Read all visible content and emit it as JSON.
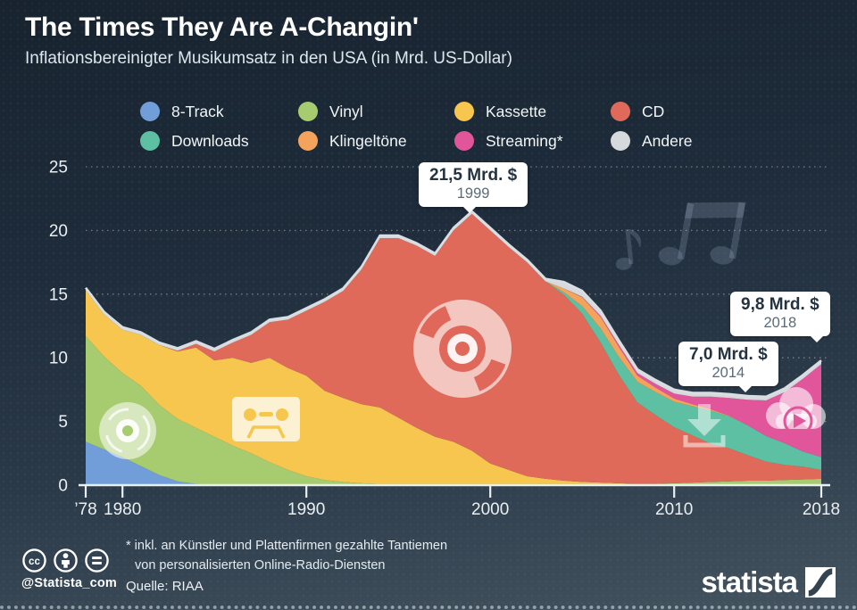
{
  "header": {
    "title": "The Times They Are A-Changin'",
    "subtitle": "Inflationsbereinigter Musikumsatz in den USA (in Mrd. US-Dollar)"
  },
  "legend": {
    "items": [
      {
        "label": "8-Track",
        "color": "#719ed9"
      },
      {
        "label": "Vinyl",
        "color": "#a7cb6f"
      },
      {
        "label": "Kassette",
        "color": "#f6c64f"
      },
      {
        "label": "CD",
        "color": "#e06a5a"
      },
      {
        "label": "Downloads",
        "color": "#5ec0a2"
      },
      {
        "label": "Klingeltöne",
        "color": "#f4a35c"
      },
      {
        "label": "Streaming*",
        "color": "#e1569b"
      },
      {
        "label": "Andere",
        "color": "#d7dadc"
      }
    ]
  },
  "callouts": [
    {
      "value": "21,5 Mrd. $",
      "year": "1999"
    },
    {
      "value": "7,0 Mrd. $",
      "year": "2014"
    },
    {
      "value": "9,8 Mrd. $",
      "year": "2018"
    }
  ],
  "chart_data": {
    "type": "area",
    "stacked": true,
    "title": "Inflationsbereinigter Musikumsatz in den USA (in Mrd. US-Dollar)",
    "xlabel": "",
    "ylabel": "",
    "x_start": 1978,
    "x_end": 2018,
    "ylim": [
      0,
      25
    ],
    "grid": "dotted-horizontal",
    "legend_position": "top-center",
    "yticks": [
      0,
      5,
      10,
      15,
      20,
      25
    ],
    "xticks": [
      {
        "label": "’78",
        "year": 1978
      },
      {
        "label": "1980",
        "year": 1980
      },
      {
        "label": "1990",
        "year": 1990
      },
      {
        "label": "2000",
        "year": 2000
      },
      {
        "label": "2010",
        "year": 2010
      },
      {
        "label": "2018",
        "year": 2018
      }
    ],
    "years": [
      1978,
      1979,
      1980,
      1981,
      1982,
      1983,
      1984,
      1985,
      1986,
      1987,
      1988,
      1989,
      1990,
      1991,
      1992,
      1993,
      1994,
      1995,
      1996,
      1997,
      1998,
      1999,
      2000,
      2001,
      2002,
      2003,
      2004,
      2005,
      2006,
      2007,
      2008,
      2009,
      2010,
      2011,
      2012,
      2013,
      2014,
      2015,
      2016,
      2017,
      2018
    ],
    "series": [
      {
        "name": "8-Track",
        "color": "#719ed9",
        "values": [
          3.4,
          2.8,
          2.2,
          1.5,
          0.8,
          0.3,
          0.1,
          0,
          0,
          0,
          0,
          0,
          0,
          0,
          0,
          0,
          0,
          0,
          0,
          0,
          0,
          0,
          0,
          0,
          0,
          0,
          0,
          0,
          0,
          0,
          0,
          0,
          0,
          0,
          0,
          0,
          0,
          0,
          0,
          0,
          0
        ]
      },
      {
        "name": "Vinyl",
        "color": "#a7cb6f",
        "values": [
          8.3,
          7.3,
          6.6,
          6.3,
          5.5,
          4.9,
          4.4,
          3.8,
          3.1,
          2.5,
          1.8,
          1.2,
          0.7,
          0.4,
          0.25,
          0.15,
          0.1,
          0.1,
          0.1,
          0.1,
          0.1,
          0.1,
          0.1,
          0.1,
          0.1,
          0.1,
          0.1,
          0.1,
          0.1,
          0.1,
          0.1,
          0.1,
          0.15,
          0.2,
          0.25,
          0.3,
          0.35,
          0.35,
          0.4,
          0.45,
          0.5
        ]
      },
      {
        "name": "Kassette",
        "color": "#f6c64f",
        "values": [
          3.6,
          3.3,
          3.4,
          4.0,
          4.7,
          5.3,
          6.3,
          6.0,
          6.9,
          7.1,
          8.2,
          8.0,
          7.9,
          7.0,
          6.6,
          6.2,
          6.0,
          5.2,
          4.4,
          3.7,
          3.3,
          2.6,
          1.6,
          1.1,
          0.6,
          0.4,
          0.25,
          0.15,
          0.1,
          0.05,
          0,
          0,
          0,
          0,
          0,
          0,
          0,
          0,
          0,
          0,
          0
        ]
      },
      {
        "name": "CD",
        "color": "#e06a5a",
        "values": [
          0,
          0,
          0,
          0,
          0,
          0.05,
          0.3,
          0.7,
          1.2,
          2.2,
          2.8,
          3.8,
          5.1,
          7.0,
          8.4,
          10.6,
          13.3,
          14.1,
          14.3,
          14.2,
          16.6,
          18.6,
          18.3,
          17.5,
          16.8,
          15.5,
          14.6,
          13.2,
          11.0,
          8.5,
          6.4,
          5.4,
          4.4,
          3.7,
          3.0,
          2.6,
          2.0,
          1.5,
          1.2,
          1.0,
          0.7
        ]
      },
      {
        "name": "Downloads",
        "color": "#5ec0a2",
        "values": [
          0,
          0,
          0,
          0,
          0,
          0,
          0,
          0,
          0,
          0,
          0,
          0,
          0,
          0,
          0,
          0,
          0,
          0,
          0,
          0,
          0,
          0,
          0,
          0,
          0,
          0,
          0.2,
          0.6,
          1.1,
          1.4,
          1.6,
          1.8,
          2.0,
          2.3,
          2.6,
          2.5,
          2.35,
          2.0,
          1.7,
          1.2,
          1.0
        ]
      },
      {
        "name": "Klingeltöne",
        "color": "#f4a35c",
        "values": [
          0,
          0,
          0,
          0,
          0,
          0,
          0,
          0,
          0,
          0,
          0,
          0,
          0,
          0,
          0,
          0,
          0,
          0,
          0,
          0,
          0,
          0,
          0,
          0,
          0,
          0,
          0.3,
          0.7,
          0.9,
          0.8,
          0.5,
          0.35,
          0.25,
          0.15,
          0.1,
          0.05,
          0,
          0,
          0,
          0,
          0
        ]
      },
      {
        "name": "Streaming",
        "color": "#e1569b",
        "values": [
          0,
          0,
          0,
          0,
          0,
          0,
          0,
          0,
          0,
          0,
          0,
          0,
          0,
          0,
          0,
          0,
          0,
          0,
          0,
          0,
          0,
          0,
          0,
          0,
          0,
          0,
          0,
          0.05,
          0.1,
          0.15,
          0.2,
          0.3,
          0.4,
          0.6,
          1.0,
          1.4,
          2.0,
          2.8,
          4.0,
          5.7,
          7.3
        ]
      },
      {
        "name": "Andere",
        "color": "#d7dadc",
        "values": [
          0.2,
          0.2,
          0.2,
          0.2,
          0.2,
          0.2,
          0.2,
          0.2,
          0.2,
          0.2,
          0.2,
          0.2,
          0.2,
          0.2,
          0.2,
          0.2,
          0.2,
          0.2,
          0.2,
          0.2,
          0.2,
          0.2,
          0.2,
          0.2,
          0.2,
          0.2,
          0.5,
          0.45,
          0.4,
          0.35,
          0.3,
          0.3,
          0.3,
          0.3,
          0.3,
          0.3,
          0.3,
          0.3,
          0.3,
          0.3,
          0.3
        ]
      }
    ],
    "annotations": [
      {
        "text": "21,5 Mrd. $",
        "year": 1999,
        "total": 21.5
      },
      {
        "text": "7,0 Mrd. $",
        "year": 2014,
        "total": 7.0
      },
      {
        "text": "9,8 Mrd. $",
        "year": 2018,
        "total": 9.8
      }
    ],
    "chart_icons": [
      "vinyl-record-icon",
      "cassette-icon",
      "cd-icon",
      "download-icon",
      "streaming-cloud-icon",
      "music-notes-icon"
    ]
  },
  "footer": {
    "cc_icons": [
      "cc-icon",
      "attribution-icon",
      "equal-icon"
    ],
    "handle": "@Statista_com",
    "note_line1": "* inkl. an Künstler und Plattenfirmen gezahlte Tantiemen",
    "note_line2": "von personalisierten Online-Radio-Diensten",
    "source": "Quelle: RIAA"
  },
  "branding": {
    "logo_text": "statista"
  }
}
